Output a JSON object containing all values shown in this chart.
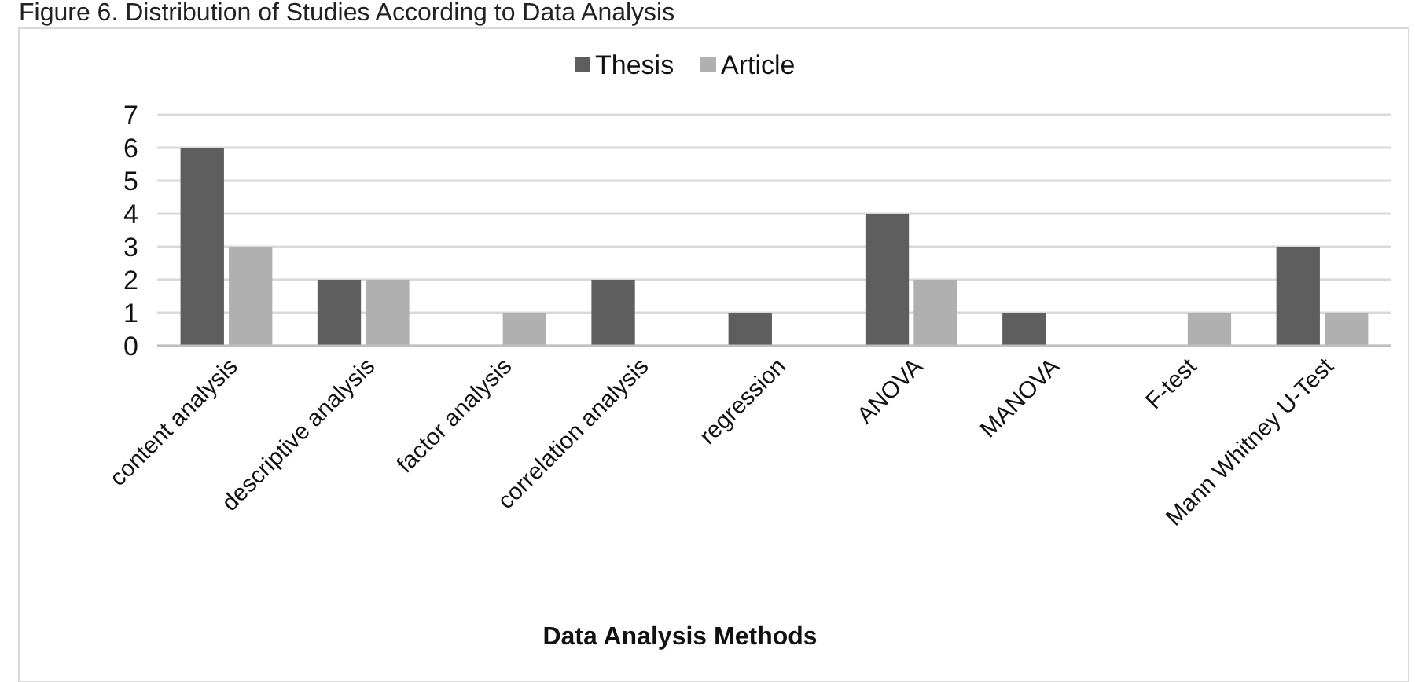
{
  "chart_data": {
    "type": "bar",
    "title": "Figure 6. Distribution of Studies According to Data Analysis",
    "xlabel": "Data Analysis Methods",
    "categories": [
      "content analysis",
      "descriptive analysis",
      "factor analysis",
      "correlation analysis",
      "regression",
      "ANOVA",
      "MANOVA",
      "F-test",
      "Mann Whitney U-Test"
    ],
    "series": [
      {
        "name": "Thesis",
        "color": "#5e5e5e",
        "values": [
          6,
          2,
          0,
          2,
          1,
          4,
          1,
          0,
          3
        ]
      },
      {
        "name": "Article",
        "color": "#b0b0b0",
        "values": [
          3,
          2,
          1,
          0,
          0,
          2,
          0,
          1,
          1
        ]
      }
    ],
    "ylim": [
      0,
      7
    ],
    "yticks": [
      0,
      1,
      2,
      3,
      4,
      5,
      6,
      7
    ],
    "grid": "y",
    "legend": "top"
  }
}
